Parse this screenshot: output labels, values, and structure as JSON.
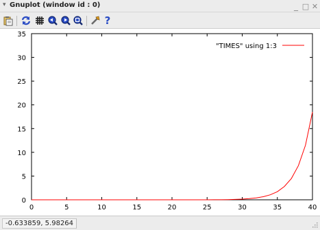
{
  "window": {
    "title": "Gnuplot (window id : 0)",
    "arrow_glyph": "▾",
    "minimize_glyph": "_",
    "maximize_glyph": "□",
    "close_glyph": "✕"
  },
  "toolbar": {
    "items": [
      {
        "icon": "copy-clipboard-icon"
      },
      {
        "icon": "replot-icon"
      },
      {
        "icon": "grid-icon"
      },
      {
        "icon": "zoom-previous-icon"
      },
      {
        "icon": "zoom-next-icon"
      },
      {
        "icon": "autoscale-icon"
      },
      {
        "icon": "settings-icon"
      },
      {
        "icon": "help-icon",
        "glyph": "?"
      }
    ]
  },
  "chart_data": {
    "type": "line",
    "title": "",
    "xlabel": "",
    "ylabel": "",
    "xlim": [
      0,
      40
    ],
    "ylim": [
      0,
      35
    ],
    "xticks": [
      0,
      5,
      10,
      15,
      20,
      25,
      30,
      35,
      40
    ],
    "yticks": [
      0,
      5,
      10,
      15,
      20,
      25,
      30,
      35
    ],
    "grid": false,
    "legend_position": "top-right",
    "series": [
      {
        "name": "\"TIMES\" using 1:3",
        "color": "#ff0000",
        "x": [
          0,
          20,
          25,
          26,
          27,
          28,
          29,
          30,
          31,
          32,
          33,
          34,
          35,
          36,
          37,
          38,
          39,
          40
        ],
        "y": [
          0,
          0,
          0,
          0.01,
          0.02,
          0.04,
          0.08,
          0.14,
          0.24,
          0.4,
          0.65,
          1.05,
          1.7,
          2.8,
          4.5,
          7.2,
          11.5,
          18.5
        ]
      }
    ]
  },
  "status": {
    "coordinates": "-0.633859, 5.98264"
  },
  "colors": {
    "toolbar_blue": "#2a4cc4",
    "toolbar_dark": "#222222",
    "line_red": "#ff0000"
  }
}
